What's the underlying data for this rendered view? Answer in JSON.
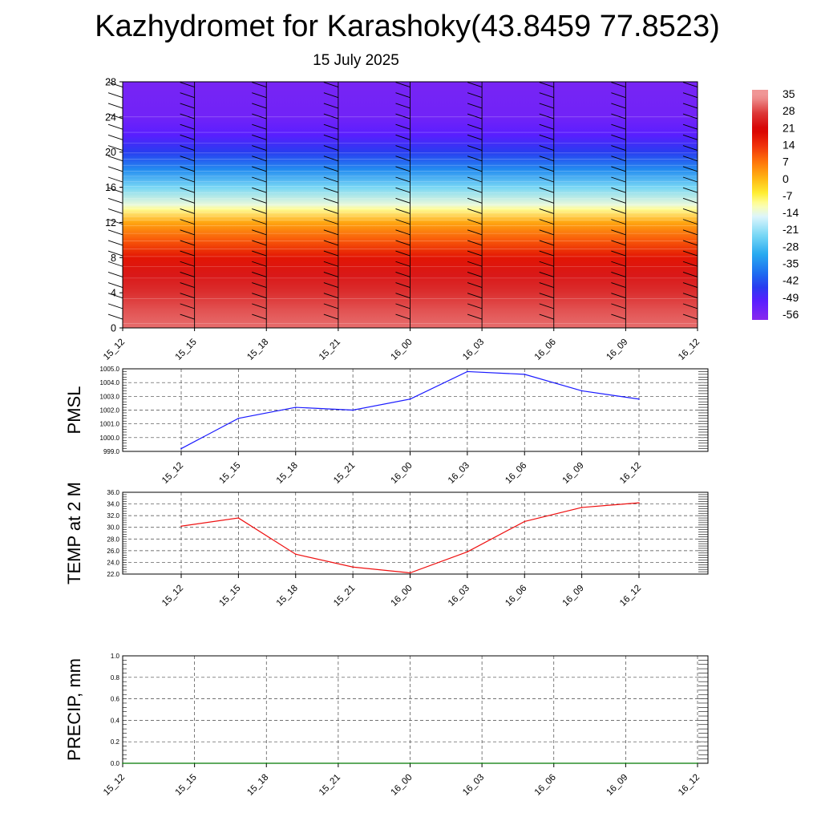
{
  "title": "Kazhydromet for Karashoky(43.8459 77.8523)",
  "subtitle": "15 July 2025",
  "chart_data": [
    {
      "type": "heatmap",
      "title": "",
      "xlabel": "",
      "ylabel": "",
      "x_ticks": [
        "15_12",
        "15_15",
        "15_18",
        "15_21",
        "16_00",
        "16_03",
        "16_06",
        "16_09",
        "16_12"
      ],
      "y_ticks": [
        0,
        4,
        8,
        12,
        16,
        20,
        24,
        28
      ],
      "ylim": [
        0,
        28
      ],
      "colorbar": {
        "labels": [
          "35",
          "28",
          "21",
          "14",
          "7",
          "0",
          "-7",
          "-14",
          "-21",
          "-28",
          "-35",
          "-42",
          "-49",
          "-56"
        ],
        "placement": "right"
      },
      "temperature_by_level": [
        {
          "y": 0,
          "t": 32
        },
        {
          "y": 2,
          "t": 30
        },
        {
          "y": 4,
          "t": 27
        },
        {
          "y": 6,
          "t": 24
        },
        {
          "y": 8,
          "t": 18
        },
        {
          "y": 10,
          "t": 10
        },
        {
          "y": 12,
          "t": 2
        },
        {
          "y": 13.5,
          "t": -10
        },
        {
          "y": 14,
          "t": -14
        },
        {
          "y": 16,
          "t": -24
        },
        {
          "y": 18,
          "t": -36
        },
        {
          "y": 20,
          "t": -46
        },
        {
          "y": 22,
          "t": -52
        },
        {
          "y": 24,
          "t": -56
        },
        {
          "y": 28,
          "t": -57
        }
      ],
      "wind_barbs": "present",
      "grid": false
    },
    {
      "type": "line",
      "ylabel": "PMSL",
      "categories": [
        "15_12",
        "15_15",
        "15_18",
        "15_21",
        "16_00",
        "16_03",
        "16_06",
        "16_09",
        "16_12"
      ],
      "series": [
        {
          "color": "#1a1aff",
          "values": [
            999.2,
            1001.4,
            1002.2,
            1002.0,
            1002.8,
            1004.8,
            1004.6,
            1003.4,
            1002.8
          ]
        }
      ],
      "ylim": [
        999.0,
        1005.0
      ],
      "y_ticks": [
        "999.0",
        "1000.0",
        "1001.0",
        "1002.0",
        "1003.0",
        "1004.0",
        "1005.0"
      ],
      "grid": true
    },
    {
      "type": "line",
      "ylabel": "TEMP at 2 M",
      "categories": [
        "15_12",
        "15_15",
        "15_18",
        "15_21",
        "16_00",
        "16_03",
        "16_06",
        "16_09",
        "16_12"
      ],
      "series": [
        {
          "color": "#ee1111",
          "values": [
            30.2,
            31.6,
            25.4,
            23.2,
            22.2,
            25.8,
            31.0,
            33.4,
            34.2
          ]
        }
      ],
      "ylim": [
        22.0,
        36.0
      ],
      "y_ticks": [
        "22.0",
        "24.0",
        "26.0",
        "28.0",
        "30.0",
        "32.0",
        "34.0",
        "36.0"
      ],
      "grid": true
    },
    {
      "type": "line",
      "ylabel": "PRECIP, mm",
      "categories": [
        "15_12",
        "15_15",
        "15_18",
        "15_21",
        "16_00",
        "16_03",
        "16_06",
        "16_09",
        "16_12"
      ],
      "series": [
        {
          "color": "#007700",
          "values": [
            0,
            0,
            0,
            0,
            0,
            0,
            0,
            0,
            0
          ]
        }
      ],
      "ylim": [
        0.0,
        1.0
      ],
      "y_ticks": [
        "0.0",
        "0.2",
        "0.4",
        "0.6",
        "0.8",
        "1.0"
      ],
      "grid": true
    }
  ]
}
